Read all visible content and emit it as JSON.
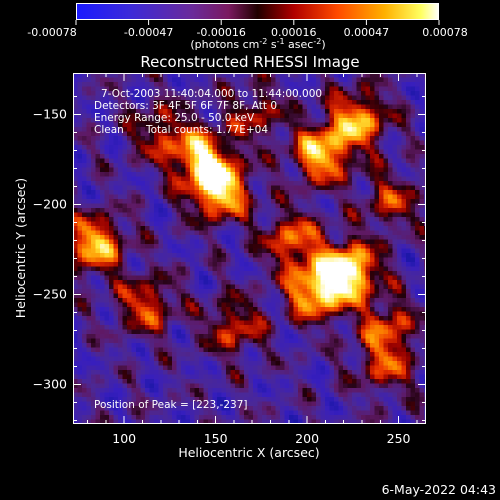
{
  "chart_data": {
    "type": "heatmap",
    "title": "Reconstructed RHESSI Image",
    "xlabel": "Heliocentric X (arcsec)",
    "ylabel": "Heliocentric Y (arcsec)",
    "xlim": [
      72,
      265
    ],
    "ylim": [
      -322,
      -127
    ],
    "x_ticks": [
      100,
      150,
      200,
      250
    ],
    "y_ticks": [
      -150,
      -200,
      -250,
      -300
    ],
    "annotations": {
      "time_range": "7-Oct-2003 11:40:04.000 to 11:44:00.000",
      "detectors": "Detectors: 3F 4F 5F 6F 7F 8F, Att 0",
      "energy_range": "Energy Range: 25.0 - 50.0 keV",
      "method": "Clean",
      "total_counts": "Total counts: 1.77E+04",
      "peak": "Position of Peak = [223,-237]"
    },
    "peak": {
      "x": 223,
      "y": -237
    },
    "colorbar": {
      "min": -0.00078,
      "max": 0.00078,
      "ticks": [
        "-0.00078",
        "-0.00047",
        "-0.00016",
        "0.00016",
        "0.00047",
        "0.00078"
      ],
      "colormap": "rainbow-thermal (blue-purple-red-orange-yellow-white)"
    },
    "colorbar_units": {
      "open": "(photons cm",
      "sup1": "-2",
      "mid1": " s",
      "sup2": "-1",
      "mid2": " asec",
      "sup3": "-2",
      "close": ")"
    },
    "bright_sources": [
      {
        "x": 152,
        "y": -192,
        "level": 0.94
      },
      {
        "x": 142,
        "y": -174,
        "level": 0.78
      },
      {
        "x": 223,
        "y": -237,
        "level": 1.0
      },
      {
        "x": 205,
        "y": -248,
        "level": 0.85
      },
      {
        "x": 208,
        "y": -172,
        "level": 0.82
      },
      {
        "x": 228,
        "y": -153,
        "level": 0.75
      },
      {
        "x": 84,
        "y": -222,
        "level": 0.8
      },
      {
        "x": 112,
        "y": -256,
        "level": 0.55
      },
      {
        "x": 160,
        "y": -268,
        "level": 0.5
      },
      {
        "x": 244,
        "y": -268,
        "level": 0.5
      },
      {
        "x": 243,
        "y": -290,
        "level": 0.45
      },
      {
        "x": 192,
        "y": -220,
        "level": 0.6
      },
      {
        "x": 120,
        "y": -160,
        "level": 0.45
      },
      {
        "x": 246,
        "y": -198,
        "level": 0.45
      },
      {
        "x": 172,
        "y": -150,
        "level": 0.4
      }
    ]
  },
  "footer": {
    "date": "6-May-2022 04:43"
  }
}
